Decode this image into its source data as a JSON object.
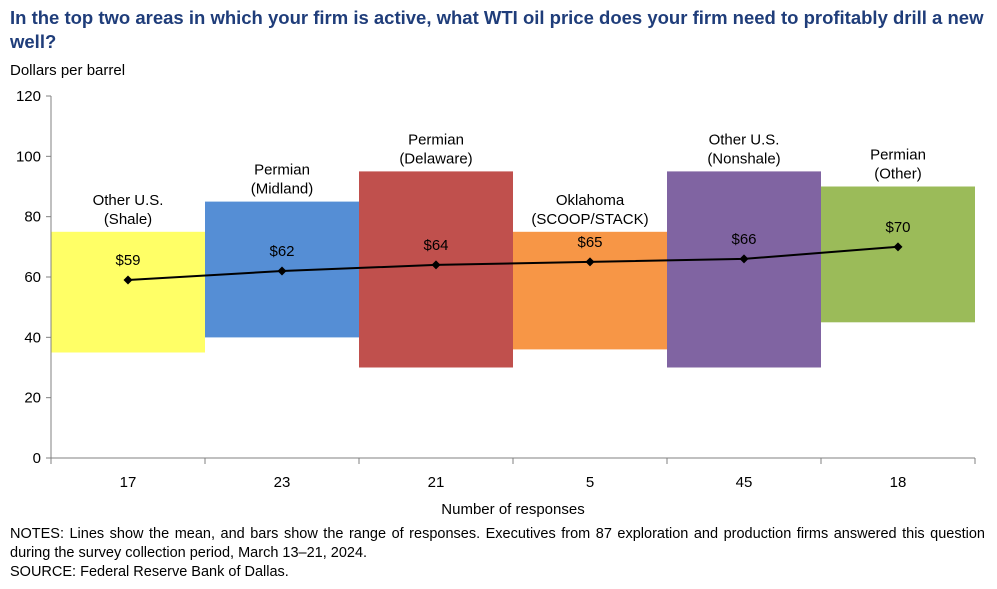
{
  "title": "In the top two areas in which your firm is active, what WTI oil price does your firm need to profitably drill a new well?",
  "unit_label": "Dollars per barrel",
  "notes": "NOTES: Lines show the mean, and bars show the range of responses. Executives from 87 exploration and production firms answered this question during the survey collection period, March 13–21, 2024.",
  "source": "SOURCE: Federal Reserve Bank of Dallas.",
  "chart_data": {
    "type": "bar",
    "title": "In the top two areas in which your firm is active, what WTI oil price does your firm need to profitably drill a new well?",
    "ylabel": "Dollars per barrel",
    "xlabel": "Number of responses",
    "ylim": [
      0,
      120
    ],
    "yticks": [
      0,
      20,
      40,
      60,
      80,
      100,
      120
    ],
    "grid": false,
    "legend": "none",
    "categories": [
      "17",
      "23",
      "21",
      "5",
      "45",
      "18"
    ],
    "areas": [
      {
        "label_lines": [
          "Other U.S.",
          "(Shale)"
        ],
        "responses": "17",
        "low": 35,
        "high": 75,
        "mean": 59,
        "mean_label": "$59",
        "color": "#ffff66"
      },
      {
        "label_lines": [
          "Permian",
          "(Midland)"
        ],
        "responses": "23",
        "low": 40,
        "high": 85,
        "mean": 62,
        "mean_label": "$62",
        "color": "#558ed5"
      },
      {
        "label_lines": [
          "Permian",
          "(Delaware)"
        ],
        "responses": "21",
        "low": 30,
        "high": 95,
        "mean": 64,
        "mean_label": "$64",
        "color": "#c0504d"
      },
      {
        "label_lines": [
          "Oklahoma",
          "(SCOOP/STACK)"
        ],
        "responses": "5",
        "low": 36,
        "high": 75,
        "mean": 65,
        "mean_label": "$65",
        "color": "#f79646"
      },
      {
        "label_lines": [
          "Other U.S.",
          "(Nonshale)"
        ],
        "responses": "45",
        "low": 30,
        "high": 95,
        "mean": 66,
        "mean_label": "$66",
        "color": "#8064a2"
      },
      {
        "label_lines": [
          "Permian",
          "(Other)"
        ],
        "responses": "18",
        "low": 45,
        "high": 90,
        "mean": 70,
        "mean_label": "$70",
        "color": "#9bbb59"
      }
    ],
    "mean_line_color": "#000000"
  }
}
